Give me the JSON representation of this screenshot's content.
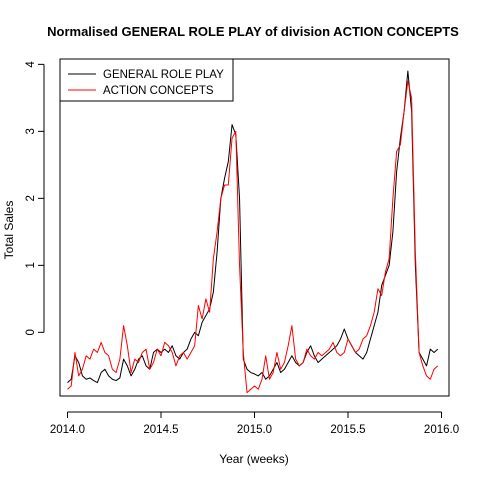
{
  "chart_data": {
    "type": "line",
    "title": "Normalised GENERAL ROLE PLAY of division ACTION CONCEPTS",
    "xlabel": "Year (weeks)",
    "ylabel": "Total Sales",
    "xlim": [
      2013.96,
      2016.04
    ],
    "ylim": [
      -0.95,
      4.08
    ],
    "x_ticks": [
      2014.0,
      2014.5,
      2015.0,
      2015.5,
      2016.0
    ],
    "x_tick_labels": [
      "2014.0",
      "2014.5",
      "2015.0",
      "2015.5",
      "2016.0"
    ],
    "y_ticks": [
      0,
      1,
      2,
      3,
      4
    ],
    "y_tick_labels": [
      "0",
      "1",
      "2",
      "3",
      "4"
    ],
    "grid": false,
    "legend_position": "top-left",
    "series": [
      {
        "name": "GENERAL ROLE PLAY",
        "color": "#000000",
        "x": [
          2014.0,
          2014.02,
          2014.04,
          2014.06,
          2014.08,
          2014.1,
          2014.12,
          2014.14,
          2014.16,
          2014.18,
          2014.2,
          2014.22,
          2014.24,
          2014.26,
          2014.28,
          2014.3,
          2014.32,
          2014.34,
          2014.36,
          2014.38,
          2014.4,
          2014.42,
          2014.44,
          2014.46,
          2014.48,
          2014.5,
          2014.52,
          2014.54,
          2014.56,
          2014.58,
          2014.6,
          2014.62,
          2014.64,
          2014.66,
          2014.68,
          2014.7,
          2014.72,
          2014.74,
          2014.76,
          2014.78,
          2014.8,
          2014.82,
          2014.84,
          2014.86,
          2014.88,
          2014.9,
          2014.92,
          2014.94,
          2014.96,
          2014.98,
          2015.0,
          2015.02,
          2015.04,
          2015.06,
          2015.08,
          2015.1,
          2015.12,
          2015.14,
          2015.16,
          2015.18,
          2015.2,
          2015.22,
          2015.24,
          2015.26,
          2015.28,
          2015.3,
          2015.32,
          2015.34,
          2015.36,
          2015.38,
          2015.4,
          2015.42,
          2015.44,
          2015.46,
          2015.48,
          2015.5,
          2015.52,
          2015.54,
          2015.56,
          2015.58,
          2015.6,
          2015.62,
          2015.64,
          2015.66,
          2015.68,
          2015.7,
          2015.72,
          2015.74,
          2015.76,
          2015.78,
          2015.8,
          2015.82,
          2015.84,
          2015.86,
          2015.88,
          2015.9,
          2015.92,
          2015.94,
          2015.96,
          2015.98
        ],
        "y": [
          -0.75,
          -0.7,
          -0.35,
          -0.45,
          -0.65,
          -0.7,
          -0.68,
          -0.72,
          -0.75,
          -0.6,
          -0.55,
          -0.65,
          -0.7,
          -0.72,
          -0.68,
          -0.4,
          -0.5,
          -0.65,
          -0.55,
          -0.4,
          -0.35,
          -0.5,
          -0.55,
          -0.3,
          -0.25,
          -0.3,
          -0.25,
          -0.3,
          -0.2,
          -0.35,
          -0.4,
          -0.3,
          -0.25,
          -0.1,
          0.0,
          -0.05,
          0.15,
          0.25,
          0.35,
          0.6,
          1.2,
          2.0,
          2.3,
          2.55,
          3.1,
          2.95,
          2.0,
          -0.4,
          -0.55,
          -0.6,
          -0.62,
          -0.65,
          -0.6,
          -0.7,
          -0.65,
          -0.55,
          -0.45,
          -0.6,
          -0.55,
          -0.45,
          -0.35,
          -0.45,
          -0.5,
          -0.45,
          -0.3,
          -0.2,
          -0.35,
          -0.45,
          -0.4,
          -0.35,
          -0.3,
          -0.25,
          -0.2,
          -0.1,
          0.05,
          -0.1,
          -0.2,
          -0.3,
          -0.35,
          -0.4,
          -0.3,
          -0.1,
          0.1,
          0.3,
          0.7,
          0.85,
          1.0,
          1.5,
          2.4,
          2.9,
          3.3,
          3.9,
          3.3,
          1.0,
          -0.3,
          -0.4,
          -0.5,
          -0.25,
          -0.3,
          -0.25
        ]
      },
      {
        "name": "ACTION CONCEPTS",
        "color": "#ff0000",
        "x": [
          2014.0,
          2014.02,
          2014.04,
          2014.06,
          2014.08,
          2014.1,
          2014.12,
          2014.14,
          2014.16,
          2014.18,
          2014.2,
          2014.22,
          2014.24,
          2014.26,
          2014.28,
          2014.3,
          2014.32,
          2014.34,
          2014.36,
          2014.38,
          2014.4,
          2014.42,
          2014.44,
          2014.46,
          2014.48,
          2014.5,
          2014.52,
          2014.54,
          2014.56,
          2014.58,
          2014.6,
          2014.62,
          2014.64,
          2014.66,
          2014.68,
          2014.7,
          2014.72,
          2014.74,
          2014.76,
          2014.78,
          2014.8,
          2014.82,
          2014.84,
          2014.86,
          2014.88,
          2014.9,
          2014.92,
          2014.94,
          2014.96,
          2014.98,
          2015.0,
          2015.02,
          2015.04,
          2015.06,
          2015.08,
          2015.1,
          2015.12,
          2015.14,
          2015.16,
          2015.18,
          2015.2,
          2015.22,
          2015.24,
          2015.26,
          2015.28,
          2015.3,
          2015.32,
          2015.34,
          2015.36,
          2015.38,
          2015.4,
          2015.42,
          2015.44,
          2015.46,
          2015.48,
          2015.5,
          2015.52,
          2015.54,
          2015.56,
          2015.58,
          2015.6,
          2015.62,
          2015.64,
          2015.66,
          2015.68,
          2015.7,
          2015.72,
          2015.74,
          2015.76,
          2015.78,
          2015.8,
          2015.82,
          2015.84,
          2015.86,
          2015.88,
          2015.9,
          2015.92,
          2015.94,
          2015.96,
          2015.98
        ],
        "y": [
          -0.85,
          -0.8,
          -0.3,
          -0.65,
          -0.55,
          -0.35,
          -0.4,
          -0.25,
          -0.3,
          -0.15,
          -0.3,
          -0.35,
          -0.55,
          -0.6,
          -0.4,
          0.1,
          -0.2,
          -0.6,
          -0.4,
          -0.45,
          -0.3,
          -0.25,
          -0.55,
          -0.45,
          -0.25,
          -0.35,
          -0.15,
          -0.2,
          -0.3,
          -0.5,
          -0.35,
          -0.3,
          -0.4,
          -0.3,
          -0.2,
          0.4,
          0.2,
          0.5,
          0.3,
          1.1,
          1.5,
          2.0,
          2.2,
          2.2,
          2.9,
          3.0,
          1.0,
          -0.3,
          -0.9,
          -0.85,
          -0.8,
          -0.85,
          -0.7,
          -0.35,
          -0.7,
          -0.6,
          -0.3,
          -0.55,
          -0.45,
          -0.2,
          0.1,
          -0.4,
          -0.5,
          -0.45,
          -0.25,
          -0.35,
          -0.4,
          -0.3,
          -0.35,
          -0.3,
          -0.25,
          -0.15,
          -0.3,
          -0.35,
          -0.3,
          -0.1,
          -0.2,
          -0.3,
          -0.25,
          -0.1,
          -0.05,
          0.1,
          0.3,
          0.65,
          0.55,
          0.9,
          1.1,
          2.0,
          2.7,
          2.8,
          3.3,
          3.75,
          3.5,
          1.2,
          -0.3,
          -0.5,
          -0.65,
          -0.7,
          -0.55,
          -0.5
        ]
      }
    ]
  }
}
